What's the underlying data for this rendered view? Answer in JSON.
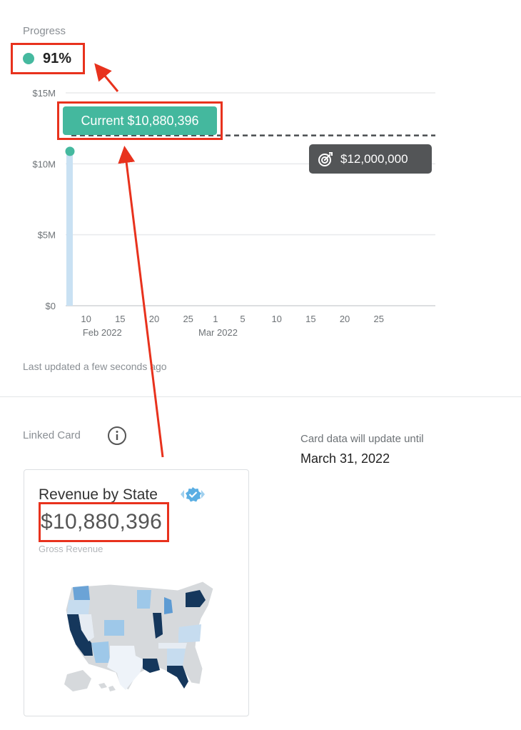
{
  "progress": {
    "label": "Progress",
    "percent_text": "91%",
    "status_color": "#45b99f"
  },
  "chart_data": {
    "type": "area",
    "ylim": [
      0,
      15000000
    ],
    "y_tick_labels": [
      "$15M",
      "$10M",
      "$5M",
      "$0"
    ],
    "y_tick_values": [
      15000000,
      10000000,
      5000000,
      0
    ],
    "x_tick_labels": [
      "10",
      "15",
      "20",
      "25",
      "1",
      "5",
      "10",
      "15",
      "20",
      "25"
    ],
    "x_month_labels": [
      "Feb 2022",
      "Mar 2022"
    ],
    "series": [
      {
        "values": [
          {
            "x": "2022-02-07",
            "y": 10880396
          }
        ]
      }
    ],
    "target_value": 12000000,
    "current_tooltip": "Current $10,880,396",
    "target_tooltip": "$12,000,000",
    "grid": true
  },
  "last_updated": "Last updated a few seconds ago",
  "linked": {
    "label": "Linked Card",
    "info_icon": "info-circle-icon",
    "update_note": "Card data will update until",
    "update_date": "March 31, 2022"
  },
  "card": {
    "title": "Revenue by State",
    "verified_icon": "verified-badge-icon",
    "value": "$10,880,396",
    "subtitle": "Gross Revenue",
    "map_icon": "us-map-choropleth"
  },
  "annotation_color": "#e8321d"
}
